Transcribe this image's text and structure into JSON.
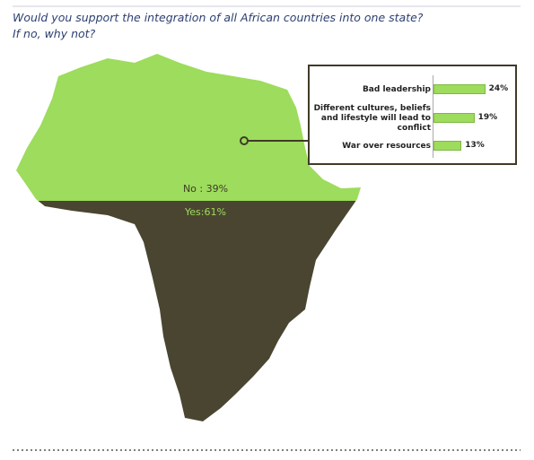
{
  "chart_data": [
    {
      "type": "split",
      "title": "Would you support the integration of all African countries into one state?",
      "subtitle": "If no, why not?",
      "categories": [
        "No",
        "Yes"
      ],
      "values": [
        39,
        61
      ],
      "value_labels": [
        "No : 39%",
        "Yes:61%"
      ],
      "colors": [
        "#9ddc5c",
        "#4a4531"
      ]
    },
    {
      "type": "bar",
      "categories": [
        "Bad leadership",
        "Different cultures, beliefs and lifestyle will lead to conflict",
        "War over resources"
      ],
      "values": [
        24,
        19,
        13
      ],
      "value_labels": [
        "24%",
        "19%",
        "13%"
      ],
      "color": "#9ddc5c"
    }
  ]
}
